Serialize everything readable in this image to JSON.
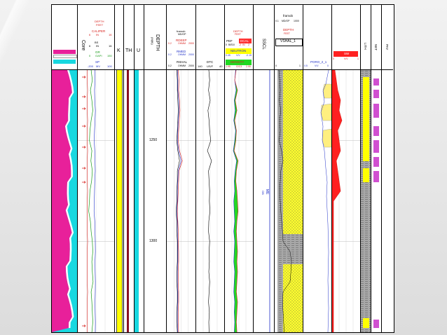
{
  "tracks": {
    "core": {
      "label": "Core"
    },
    "gr": {
      "curves": [
        {
          "name": "DEPTH",
          "sub": "FEET",
          "scale": [
            "",
            ""
          ],
          "color": "#d8201c"
        },
        {
          "name": "CALIPER",
          "sub": "IN",
          "scale": [
            "6",
            "16"
          ],
          "color": "#d8201c"
        },
        {
          "name": "BS",
          "sub": "IN",
          "scale": [
            "6",
            "16"
          ],
          "color": "#000000"
        },
        {
          "name": "GR",
          "sub": "GAPI",
          "scale": [
            "0",
            "150"
          ],
          "color": "#1a9a1a"
        },
        {
          "name": "SP",
          "sub": "MV",
          "scale": [
            "-200",
            "100"
          ],
          "color": "#2030c8"
        }
      ]
    },
    "k": {
      "label": "K"
    },
    "th": {
      "label": "TH"
    },
    "u": {
      "label": "U"
    },
    "depth": {
      "label": "DEPTH",
      "unit": "(M(ft))",
      "ticks": [
        "1250",
        "1300"
      ]
    },
    "resist": {
      "title": "framob",
      "title_sub": "MD/OP",
      "curves": [
        {
          "name": "RDEEP",
          "sub": "OHMM",
          "scale": [
            "0.2",
            "2000"
          ],
          "color": "#d8201c"
        },
        {
          "name": "RMED",
          "sub": "OHMM",
          "scale": [
            "0.2",
            "2000"
          ],
          "color": "#2030c8"
        },
        {
          "name": "RSHAL",
          "sub": "OHMM",
          "scale": [
            "0.2",
            "2000"
          ],
          "color": "#000000"
        }
      ]
    },
    "dtc": {
      "name": "DTC",
      "unit": "US/F",
      "scale": [
        "140",
        "40"
      ]
    },
    "porosity": {
      "curves": [
        {
          "name": "DEPTH",
          "sub": "FEET",
          "color": "#d8201c"
        },
        {
          "name": "PEF",
          "sub": "B/E",
          "scale": [
            "0",
            "10"
          ],
          "color": "#000000"
        },
        {
          "name": "DCAL",
          "sub": "IN",
          "scale": [
            "-2",
            "2"
          ],
          "color": "#d8201c"
        },
        {
          "name": "NEUTRON",
          "sub": "V/V",
          "scale": [
            "0.45",
            "-0.15"
          ],
          "color": "#2030c8"
        },
        {
          "name": "DENSITY",
          "sub": "G/C3",
          "scale": [
            "1.95",
            "2.95"
          ],
          "color": "#d8201c"
        }
      ]
    },
    "sscl": {
      "label": "SSCL",
      "mid_label": "ME",
      "mid_sub": "OB"
    },
    "vshale": {
      "title": "framob",
      "title_scale": [
        "0.1",
        "1000"
      ],
      "title_sub": "MD/OP",
      "depth_label": "DEPTH",
      "depth_sub": "FEET",
      "curve": "VSHAL_1",
      "scale": [
        "0",
        "1"
      ]
    },
    "poro": {
      "curve": "PORO_2_1",
      "sub": "V/V",
      "scale": [
        "0.5",
        "0"
      ]
    },
    "sw": {
      "curve": "SW",
      "sub": "V/V",
      "scale": [
        "0",
        "1"
      ]
    },
    "lith": {
      "label": "LITH"
    },
    "net": {
      "label": "NET"
    },
    "pay": {
      "label": "PAY"
    }
  },
  "chart_data": {
    "type": "line",
    "title": "",
    "y_axis": {
      "label": "DEPTH",
      "unit": "(M(ft))",
      "ticks": [
        1250,
        1300
      ],
      "range": [
        1215,
        1345
      ],
      "inverted": true
    },
    "depth_samples": [
      1215,
      1220,
      1225,
      1230,
      1235,
      1240,
      1245,
      1250,
      1255,
      1260,
      1265,
      1270,
      1275,
      1280,
      1285,
      1290,
      1295,
      1300,
      1305,
      1310,
      1315,
      1320,
      1325,
      1330,
      1335,
      1340,
      1345
    ],
    "series": [
      {
        "name": "GR",
        "track": "gr",
        "scale": [
          0,
          150
        ],
        "values": [
          55,
          60,
          52,
          58,
          62,
          55,
          50,
          48,
          58,
          54,
          60,
          57,
          50,
          48,
          45,
          52,
          55,
          60,
          62,
          58,
          60,
          63,
          55,
          58,
          60,
          62,
          58
        ]
      },
      {
        "name": "SP",
        "track": "gr",
        "scale": [
          -200,
          100
        ],
        "values": [
          -60,
          -58,
          -62,
          -60,
          -55,
          -58,
          -62,
          -65,
          -60,
          -58,
          -56,
          -60,
          -62,
          -64,
          -66,
          -60,
          -58,
          -56,
          -55,
          -58,
          -57,
          -55,
          -56,
          -58,
          -57,
          -55,
          -56
        ]
      },
      {
        "name": "CALIPER",
        "track": "gr",
        "scale": [
          6,
          16
        ],
        "values": [
          8.6,
          8.6,
          8.7,
          8.6,
          8.6,
          8.7,
          8.6,
          8.6,
          8.7,
          8.6,
          8.6,
          8.6,
          8.7,
          8.6,
          8.6,
          8.6,
          8.6,
          8.7,
          8.6,
          8.6,
          8.6,
          8.6,
          8.7,
          8.6,
          8.6,
          8.6,
          8.6
        ]
      },
      {
        "name": "RDEEP",
        "track": "resist",
        "scale": [
          0.2,
          2000
        ],
        "log": true,
        "values": [
          8,
          10,
          9,
          12,
          14,
          11,
          9,
          8,
          12,
          30,
          10,
          9,
          8,
          7,
          6,
          7,
          8,
          8,
          9,
          9,
          8,
          8,
          9,
          9,
          8,
          8,
          9
        ]
      },
      {
        "name": "RMED",
        "track": "resist",
        "scale": [
          0.2,
          2000
        ],
        "log": true,
        "values": [
          6,
          7,
          7,
          9,
          10,
          8,
          7,
          6,
          9,
          20,
          8,
          7,
          6,
          6,
          5,
          6,
          6,
          7,
          7,
          7,
          6,
          6,
          7,
          7,
          6,
          6,
          7
        ]
      },
      {
        "name": "RSHAL",
        "track": "resist",
        "scale": [
          0.2,
          2000
        ],
        "log": true,
        "values": [
          5,
          6,
          6,
          7,
          8,
          7,
          6,
          5,
          7,
          12,
          6,
          6,
          5,
          5,
          4,
          5,
          5,
          6,
          6,
          6,
          5,
          5,
          6,
          6,
          5,
          5,
          6
        ]
      },
      {
        "name": "DTC",
        "track": "dtc",
        "scale": [
          140,
          40
        ],
        "values": [
          95,
          92,
          96,
          90,
          98,
          94,
          92,
          88,
          100,
          85,
          96,
          94,
          92,
          93,
          91,
          95,
          96,
          92,
          94,
          93,
          95,
          92,
          94,
          96,
          93,
          95,
          94
        ]
      },
      {
        "name": "NEUTRON",
        "track": "porosity",
        "scale": [
          0.45,
          -0.15
        ],
        "values": [
          0.22,
          0.24,
          0.21,
          0.25,
          0.23,
          0.26,
          0.22,
          0.24,
          0.27,
          0.2,
          0.23,
          0.25,
          0.24,
          0.26,
          0.25,
          0.24,
          0.26,
          0.24,
          0.25,
          0.26,
          0.24,
          0.25,
          0.26,
          0.24,
          0.25,
          0.24,
          0.25
        ]
      },
      {
        "name": "DENSITY",
        "track": "porosity",
        "scale": [
          1.95,
          2.95
        ],
        "values": [
          2.35,
          2.3,
          2.4,
          2.32,
          2.38,
          2.3,
          2.36,
          2.34,
          2.28,
          2.42,
          2.36,
          2.34,
          2.38,
          2.4,
          2.42,
          2.38,
          2.36,
          2.38,
          2.4,
          2.38,
          2.4,
          2.38,
          2.36,
          2.4,
          2.38,
          2.36,
          2.38
        ]
      },
      {
        "name": "VSHAL_1",
        "track": "vshale",
        "scale": [
          0,
          1
        ],
        "values": [
          0.15,
          0.18,
          0.2,
          0.17,
          0.22,
          0.18,
          0.2,
          0.16,
          0.25,
          0.3,
          0.22,
          0.2,
          0.18,
          0.2,
          0.22,
          0.25,
          0.28,
          0.3,
          0.55,
          0.6,
          0.58,
          0.55,
          0.3,
          0.28,
          0.3,
          0.32,
          0.35
        ]
      },
      {
        "name": "SW",
        "track": "sw",
        "scale": [
          0,
          1
        ],
        "values": [
          0.1,
          0.15,
          0.2,
          0.3,
          0.25,
          0.35,
          0.2,
          0.25,
          0.3,
          0.15,
          0.2,
          0.25,
          0.3,
          0.05,
          0.05,
          0.05,
          0.05,
          0.05,
          0.05,
          0.05,
          0.05,
          0.05,
          0.05,
          0.05,
          0.05,
          0.05,
          0.05
        ]
      }
    ]
  }
}
